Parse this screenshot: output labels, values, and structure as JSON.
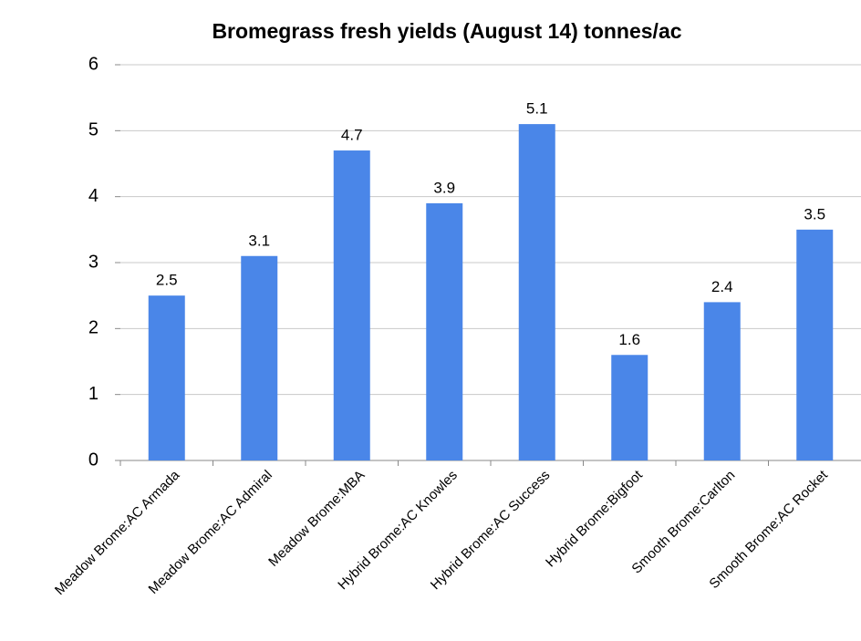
{
  "chart_data": {
    "type": "bar",
    "title": "Bromegrass fresh yields (August 14) tonnes/ac",
    "categories": [
      "Meadow Brome:AC Armada",
      "Meadow Brome:AC Admiral",
      "Meadow Brome:MBA",
      "Hybrid Brome:AC Knowles",
      "Hybrid Brome:AC Success",
      "Hybrid Brome:Bigfoot",
      "Smooth Brome:Carlton",
      "Smooth Brome:AC Rocket"
    ],
    "values": [
      2.5,
      3.1,
      4.7,
      3.9,
      5.1,
      1.6,
      2.4,
      3.5
    ],
    "color": "#4a86e8",
    "ylim": [
      0,
      6
    ],
    "yticks": [
      0,
      1,
      2,
      3,
      4,
      5,
      6
    ],
    "grid": true
  }
}
